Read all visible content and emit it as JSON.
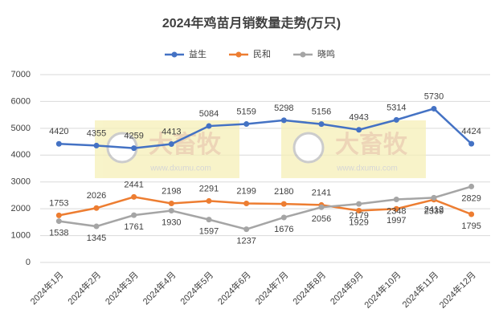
{
  "chart_data": {
    "type": "line",
    "title": "2024年鸡苗月销数量走势(万只)",
    "categories": [
      "2024年1月",
      "2024年2月",
      "2024年3月",
      "2024年4月",
      "2024年5月",
      "2024年6月",
      "2024年7月",
      "2024年8月",
      "2024年9月",
      "2024年10月",
      "2024年11月",
      "2024年12月"
    ],
    "series": [
      {
        "name": "益生",
        "color": "#4472c4",
        "values": [
          4420,
          4355,
          4259,
          4413,
          5084,
          5159,
          5298,
          5156,
          4943,
          5314,
          5730,
          4424
        ]
      },
      {
        "name": "民和",
        "color": "#ed7d31",
        "values": [
          1753,
          2026,
          2441,
          2198,
          2291,
          2199,
          2180,
          2141,
          1929,
          1997,
          2339,
          1795
        ]
      },
      {
        "name": "晓鸣",
        "color": "#a5a5a5",
        "values": [
          1538,
          1345,
          1761,
          1930,
          1597,
          1237,
          1676,
          2056,
          2179,
          2348,
          2412,
          2829
        ]
      }
    ],
    "ylim": [
      0,
      7000
    ],
    "yticks": [
      0,
      1000,
      2000,
      3000,
      4000,
      5000,
      6000,
      7000
    ],
    "grid": true,
    "legend": "top",
    "watermark": {
      "name": "大畜牧",
      "url": "www.dxumu.com"
    }
  }
}
